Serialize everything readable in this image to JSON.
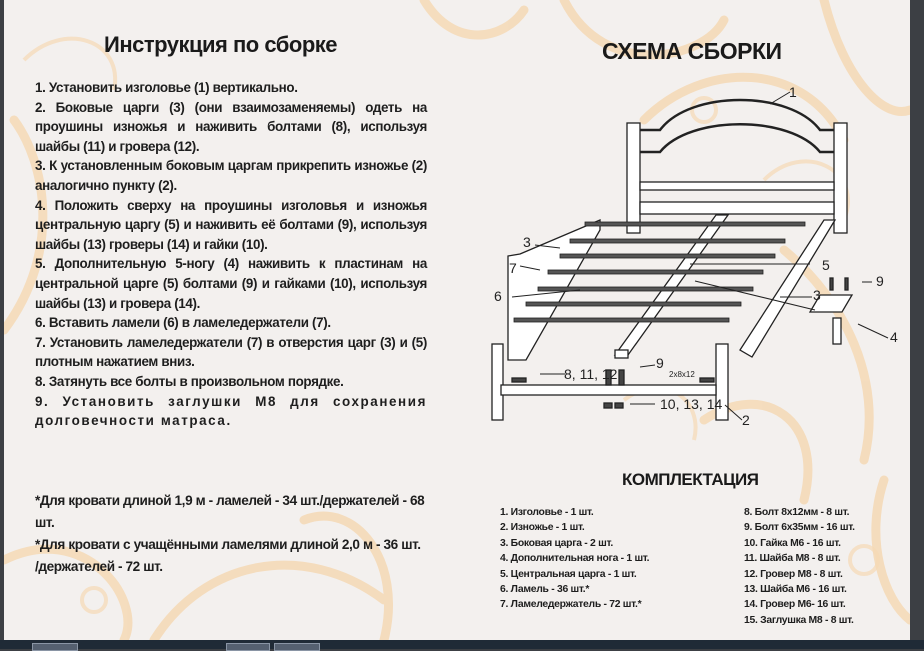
{
  "left": {
    "title": "Инструкция по сборке",
    "steps": [
      "1. Установить изголовье (1) вертикально.",
      "2. Боковые царги (3) (они взаимозаменяемы) одеть на проушины изножья и наживить болтами (8), используя шайбы (11) и гровера (12).",
      "3. К установленным боковым царгам прикрепить изножье (2) аналогично пункту (2).",
      "4. Положить сверху на проушины изголовья и изножья центральную царгу (5) и наживить её болтами (9), используя шайбы (13) гроверы (14) и гайки (10).",
      "5. Дополнительную 5-ногу (4) наживить к пластинам на центральной царге (5) болтами (9) и гайками (10), используя шайбы (13) и гровера (14).",
      "6. Вставить ламели (6) в ламеледержатели (7).",
      "7. Установить ламеледержатели (7) в отверстия царг (3) и (5) плотным нажатием вниз.",
      "8. Затянуть все болты в произвольном порядке.",
      "9. Установить заглушки М8 для сохранения долговечности матраса."
    ],
    "notes": [
      "*Для кровати длиной 1,9 м - ламелей - 34 шт./держателей - 68 шт.",
      "*Для кровати с учащёнными ламелями длиной 2,0 м - 36 шт. /держателей - 72 шт."
    ]
  },
  "right": {
    "scheme_title": "СХЕМА СБОРКИ",
    "diagram_labels": {
      "l1": "1",
      "l2": "2",
      "l3a": "3",
      "l3b": "3",
      "l4": "4",
      "l5": "5",
      "l6": "6",
      "l7": "7",
      "l9a": "9",
      "l9b": "9",
      "l81112": "8, 11, 12",
      "l101314": "10, 13, 14",
      "l2x8x12": "2x8x12"
    },
    "kit_title": "КОМПЛЕКТАЦИЯ",
    "kit_col1": [
      "1. Изголовье - 1 шт.",
      "2. Изножье - 1 шт.",
      "3. Боковая царга - 2 шт.",
      "4. Дополнительная нога - 1 шт.",
      "5. Центральная царга - 1 шт.",
      "6. Ламель - 36 шт.*",
      "7. Ламеледержатель - 72 шт.*"
    ],
    "kit_col2": [
      "8. Болт 8x12мм - 8 шт.",
      "9. Болт 6x35мм - 16 шт.",
      "10. Гайка М6 - 16 шт.",
      "11. Шайба М8 - 8 шт.",
      "12. Гровер М8 - 8 шт.",
      "13. Шайба М6 - 16 шт.",
      "14. Гровер М6- 16 шт.",
      "15. Заглушка М8 - 8 шт."
    ]
  },
  "colors": {
    "page": "#f3f0ee",
    "ornament": "#f5d9b5",
    "text": "#1e1e1e",
    "frame": "#3c3f44"
  }
}
